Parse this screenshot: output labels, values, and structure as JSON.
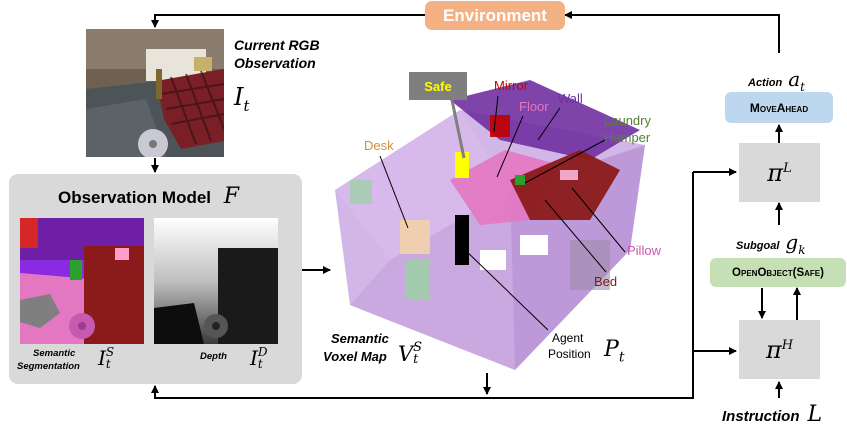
{
  "environment_label": "Environment",
  "current_rgb": {
    "line1": "Current RGB",
    "line2": "Observation",
    "symbol": "I",
    "sub": "t"
  },
  "observation_model": {
    "title": "Observation Model",
    "symbol": "F"
  },
  "semantic_seg": {
    "line1": "Semantic",
    "line2": "Segmentation",
    "symbol": "I",
    "sub": "t",
    "sup": "S"
  },
  "depth": {
    "label": "Depth",
    "symbol": "I",
    "sub": "t",
    "sup": "D"
  },
  "voxel_map": {
    "line1": "Semantic",
    "line2": "Voxel Map",
    "symbol": "V",
    "sub": "t",
    "sup": "S"
  },
  "agent_position": {
    "line1": "Agent",
    "line2": "Position",
    "symbol": "P",
    "sub": "t"
  },
  "voxel_labels": {
    "safe": "Safe",
    "mirror": "Mirror",
    "floor": "Floor",
    "wall": "Wall",
    "laundry1": "Laundry",
    "laundry2": "Hamper",
    "desk": "Desk",
    "pillow": "Pillow",
    "bed": "Bed"
  },
  "action": {
    "label": "Action",
    "symbol": "a",
    "sub": "t",
    "value": "MoveAhead"
  },
  "policy_low": {
    "symbol": "π",
    "sup": "L"
  },
  "subgoal": {
    "label": "Subgoal",
    "symbol": "g",
    "sub": "k",
    "value": "OpenObject(Safe)"
  },
  "policy_high": {
    "symbol": "π",
    "sup": "H"
  },
  "instruction": {
    "label": "Instruction",
    "symbol": "L"
  },
  "colors": {
    "environment_bg": "#F4B183",
    "action_box": "#BDD7EE",
    "subgoal_box": "#C5E0B4",
    "policy_box": "#D9D9D9",
    "obs_model_bg": "#D9D9D9",
    "safe_text": "#FFFF00",
    "mirror_text": "#C00000",
    "floor_text": "#E377C2",
    "wall_text": "#7030A0",
    "laundry_text": "#548235",
    "desk_text": "#D98C3A",
    "pillow_text": "#C55AB0",
    "bed_text": "#7B1B1B"
  }
}
